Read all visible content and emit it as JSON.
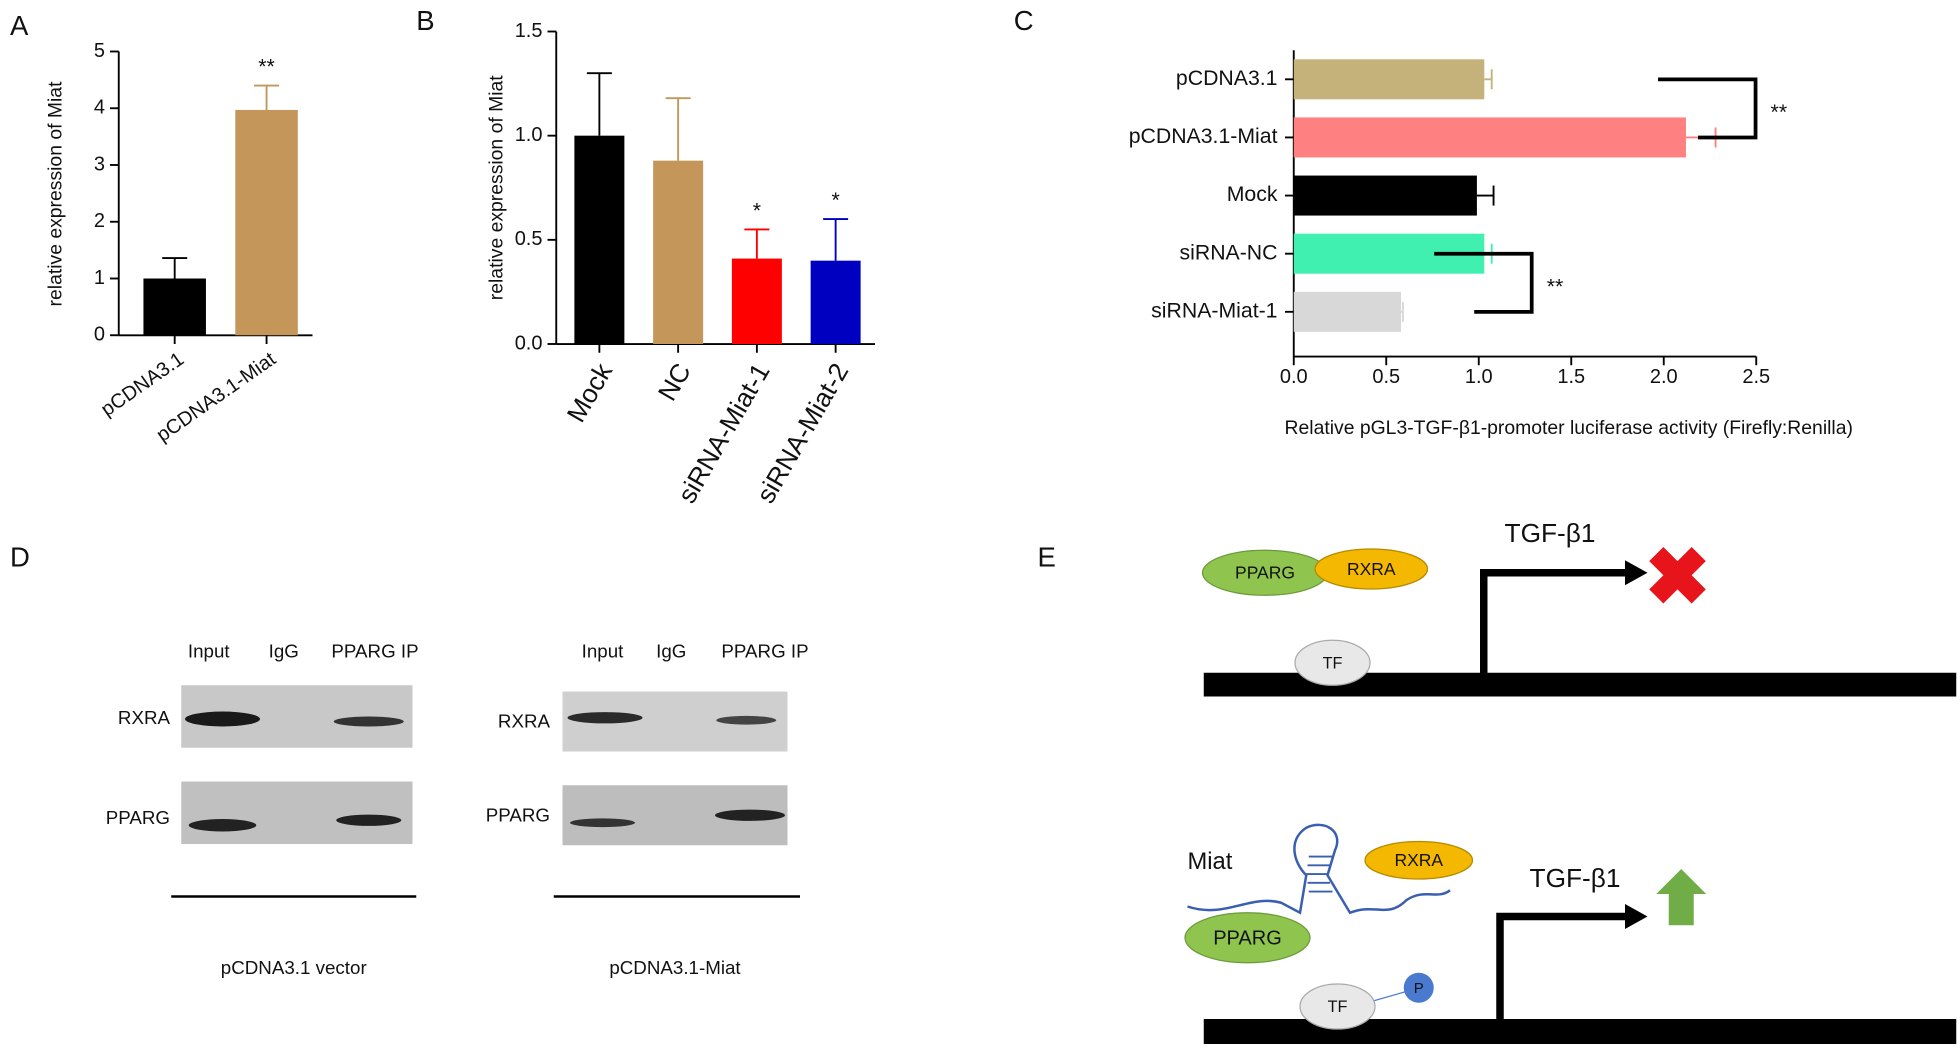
{
  "chart_data": [
    {
      "type": "bar",
      "panel": "A",
      "ylabel": "relative expression of Miat",
      "categories": [
        "pCDNA3.1",
        "pCDNA3.1-Miat"
      ],
      "values": [
        1.0,
        3.97
      ],
      "errors": [
        0.36,
        0.43
      ],
      "colors": [
        "#000000",
        "#c4965a"
      ],
      "ylim": [
        0,
        5
      ],
      "yticks": [
        0,
        1,
        2,
        3,
        4,
        5
      ],
      "annotations": [
        {
          "text": "**",
          "category": 1
        }
      ]
    },
    {
      "type": "bar",
      "panel": "B",
      "ylabel": "relative expression of Miat",
      "categories": [
        "Mock",
        "NC",
        "siRNA-Miat-1",
        "siRNA-Miat-2"
      ],
      "values": [
        1.0,
        0.88,
        0.41,
        0.4
      ],
      "errors": [
        0.3,
        0.3,
        0.14,
        0.2
      ],
      "colors": [
        "#000000",
        "#c4965a",
        "#ff0000",
        "#0000c0"
      ],
      "ylim": [
        0,
        1.5
      ],
      "yticks": [
        {
          "value": 0,
          "label": "0.0"
        },
        0.5,
        {
          "value": 1,
          "label": "1.0"
        },
        1.5
      ],
      "annotations": [
        {
          "text": "*",
          "category": 2
        },
        {
          "text": "*",
          "category": 3
        }
      ]
    },
    {
      "type": "barh",
      "panel": "C",
      "xlabel": "Relative pGL3-TGF-β1-promoter luciferase activity (Firefly:Renilla)",
      "categories": [
        "pCDNA3.1",
        "pCDNA3.1-Miat",
        "Mock",
        "siRNA-NC",
        "siRNA-Miat-1"
      ],
      "values": [
        1.03,
        2.12,
        0.99,
        1.03,
        0.58
      ],
      "errors": [
        0.04,
        0.16,
        0.09,
        0.04,
        0.01
      ],
      "colors": [
        "#c4b27a",
        "#ff8080",
        "#000000",
        "#40f0b0",
        "#d8d8d8"
      ],
      "xlim": [
        0,
        2.5
      ],
      "xticks": [
        {
          "value": 0,
          "label": "0.0"
        },
        0.5,
        {
          "value": 1,
          "label": "1.0"
        },
        1.5,
        {
          "value": 2,
          "label": "2.0"
        },
        2.5
      ],
      "annotations": [
        {
          "text": "**",
          "categories": [
            0,
            1
          ]
        },
        {
          "text": "**",
          "categories": [
            3,
            4
          ]
        }
      ]
    }
  ],
  "panel_d": {
    "label": "D",
    "blots": [
      {
        "columns": [
          "Input",
          "IgG",
          "PPARG IP"
        ],
        "rows": [
          "RXRA",
          "PPARG"
        ],
        "caption": "pCDNA3.1 vector"
      },
      {
        "columns": [
          "Input",
          "IgG",
          "PPARG IP"
        ],
        "rows": [
          "RXRA",
          "PPARG"
        ],
        "caption": "pCDNA3.1-Miat"
      }
    ]
  },
  "panel_e": {
    "label": "E",
    "top": {
      "protein1": "PPARG",
      "protein2": "RXRA",
      "factor": "TF",
      "gene": "TGF-β1"
    },
    "bottom": {
      "rna": "Miat",
      "protein2": "RXRA",
      "protein1": "PPARG",
      "factor": "TF",
      "phospho": "P",
      "gene": "TGF-β1"
    }
  }
}
